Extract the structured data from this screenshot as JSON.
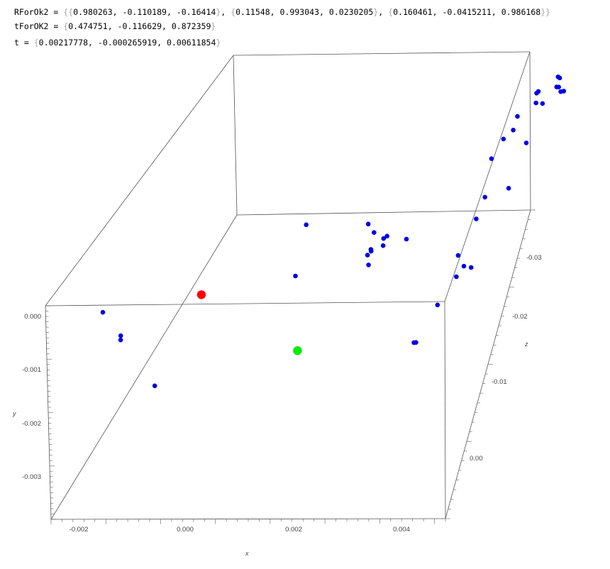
{
  "notebook": {
    "lines": [
      {
        "label": "RForOk2",
        "value": "{{0.980263, -0.110189, -0.16414}, {0.11548, 0.993043, 0.0230205}, {0.160461, -0.0415211, 0.986168}}"
      },
      {
        "label": "tForOK2",
        "value": "{0.474751, -0.116629, 0.872359}"
      },
      {
        "label": "t",
        "value": "{0.00217778, -0.000265919, 0.00611854}"
      }
    ]
  },
  "chart_data": {
    "type": "scatter",
    "projection": "3d",
    "box": true,
    "axes": {
      "x": {
        "label": "x",
        "ticks": [
          "-0.002",
          "0.000",
          "0.002",
          "0.004"
        ]
      },
      "y": {
        "label": "y",
        "ticks": [
          "0.000",
          "-0.001",
          "-0.002",
          "-0.003"
        ]
      },
      "z": {
        "label": "z",
        "ticks": [
          "-0.03",
          "-0.02",
          "-0.01",
          "0.00"
        ]
      }
    },
    "point_colors": {
      "points": "#0000e6",
      "red_marker": "#ff0000",
      "green_marker": "#00ee00"
    },
    "series": [
      {
        "color": "#0000e6",
        "points": [
          [
            0.00081,
            -0.00088,
            -0.016
          ],
          [
            -0.00178,
            -0.00021,
            0.00079
          ],
          [
            -0.00142,
            -0.0006,
            0.0012
          ],
          [
            -0.00141,
            -0.00066,
            0.00135
          ],
          [
            -0.00068,
            -0.00134,
            0.00268
          ],
          [
            0.00104,
            -0.00106,
            -0.01015
          ],
          [
            0.00194,
            -0.00128,
            -0.01855
          ],
          [
            0.00207,
            -0.00145,
            -0.01845
          ],
          [
            0.00198,
            -0.00186,
            -0.0187
          ],
          [
            0.00192,
            -0.00195,
            -0.0185
          ],
          [
            0.00231,
            -0.00151,
            -0.018
          ],
          [
            0.00216,
            -0.00167,
            -0.0155
          ],
          [
            0.00211,
            -0.00162,
            -0.017
          ],
          [
            0.00235,
            -0.00154,
            -0.0185
          ],
          [
            0.00229,
            -0.00168,
            -0.0181
          ],
          [
            0.00277,
            -0.00161,
            -0.0185
          ],
          [
            0.00376,
            -0.0027,
            -0.02
          ],
          [
            0.00395,
            -0.0024,
            -0.0196
          ],
          [
            0.00406,
            -0.00195,
            -0.0259
          ],
          [
            0.00447,
            -0.00114,
            -0.0321
          ],
          [
            0.00411,
            -0.00243,
            -0.0196
          ],
          [
            0.00414,
            -0.00128,
            -0.0272
          ],
          [
            0.00434,
            -0.00106,
            -0.0286
          ],
          [
            0.00488,
            -0.00116,
            -0.0286
          ],
          [
            0.00445,
            -0.00122,
            -0.0307
          ],
          [
            0.00492,
            -0.00083,
            -0.0322
          ],
          [
            0.00509,
            -0.00081,
            -0.032
          ],
          [
            0.00494,
            -0.00067,
            -0.0329
          ],
          [
            0.00538,
            -0.0006,
            -0.0331
          ],
          [
            0.0054,
            -0.0004,
            -0.0334
          ],
          [
            0.00542,
            -0.0005,
            -0.0338
          ],
          [
            0.00489,
            -0.00073,
            -0.033
          ],
          [
            0.00368,
            -0.00258,
            -0.022
          ],
          [
            0.00355,
            -0.00272,
            -0.0166
          ],
          [
            0.00327,
            -0.003,
            -0.0136
          ],
          [
            0.00322,
            -0.00302,
            -0.0137
          ],
          [
            0.00388,
            -0.00238,
            -0.0255
          ],
          [
            0.00456,
            -0.00191,
            -0.0268
          ],
          [
            0.0054,
            -0.00071,
            -0.0337
          ],
          [
            0.00554,
            -0.00076,
            -0.0334
          ],
          [
            0.00555,
            -0.00047,
            -0.0317
          ]
        ]
      },
      {
        "color": "#ff0000",
        "points": [
          [
            0.0,
            0.0,
            0.0
          ]
        ]
      },
      {
        "color": "#00ee00",
        "points": [
          [
            0.00217778,
            -0.000265919,
            0.00611854
          ]
        ]
      }
    ]
  }
}
